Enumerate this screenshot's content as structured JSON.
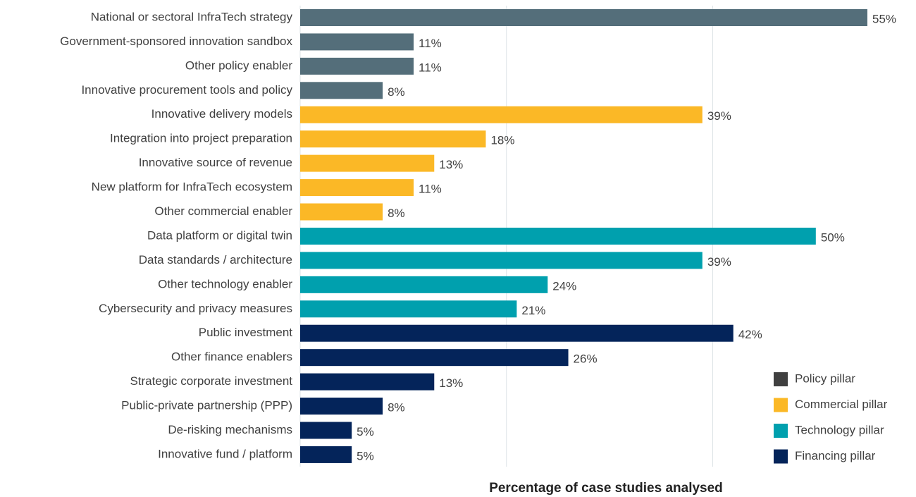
{
  "chart_data": {
    "type": "barh",
    "xlabel": "Percentage of case studies analysed",
    "categories": [
      "National or sectoral InfraTech strategy",
      "Government-sponsored innovation sandbox",
      "Other policy enabler",
      "Innovative procurement tools and policy",
      "Innovative delivery models",
      "Integration into project preparation",
      "Innovative source of revenue",
      "New platform for InfraTech ecosystem",
      "Other commercial enabler",
      "Data platform or digital twin",
      "Data standards / architecture",
      "Other technology enabler",
      "Cybersecurity and privacy measures",
      "Public investment",
      "Other finance enablers",
      "Strategic corporate investment",
      "Public-private partnership (PPP)",
      "De-risking mechanisms",
      "Innovative fund / platform"
    ],
    "series": [
      {
        "name": "Policy pillar",
        "color": "#546e7a",
        "legend_color": "#404040",
        "values": [
          55,
          11,
          11,
          8,
          null,
          null,
          null,
          null,
          null,
          null,
          null,
          null,
          null,
          null,
          null,
          null,
          null,
          null,
          null
        ],
        "value_labels": [
          "55%",
          "11%",
          "11%",
          "8%",
          null,
          null,
          null,
          null,
          null,
          null,
          null,
          null,
          null,
          null,
          null,
          null,
          null,
          null,
          null
        ]
      },
      {
        "name": "Commercial pillar",
        "color": "#fbb826",
        "values": [
          null,
          null,
          null,
          null,
          39,
          18,
          13,
          11,
          8,
          null,
          null,
          null,
          null,
          null,
          null,
          null,
          null,
          null,
          null
        ],
        "value_labels": [
          null,
          null,
          null,
          null,
          "39%",
          "18%",
          "13%",
          "11%",
          "8%",
          null,
          null,
          null,
          null,
          null,
          null,
          null,
          null,
          null,
          null
        ]
      },
      {
        "name": "Technology pillar",
        "color": "#00a0ae",
        "values": [
          null,
          null,
          null,
          null,
          null,
          null,
          null,
          null,
          null,
          50,
          39,
          24,
          21,
          null,
          null,
          null,
          null,
          null,
          null
        ],
        "value_labels": [
          null,
          null,
          null,
          null,
          null,
          null,
          null,
          null,
          null,
          "50%",
          "39%",
          "24%",
          "21%",
          null,
          null,
          null,
          null,
          null,
          null
        ]
      },
      {
        "name": "Financing pillar",
        "color": "#04245a",
        "values": [
          null,
          null,
          null,
          null,
          null,
          null,
          null,
          null,
          null,
          null,
          null,
          null,
          null,
          42,
          26,
          13,
          8,
          5,
          5
        ],
        "value_labels": [
          null,
          null,
          null,
          null,
          null,
          null,
          null,
          null,
          null,
          null,
          null,
          null,
          null,
          "42%",
          "26%",
          "13%",
          "8%",
          "5%",
          "5%"
        ]
      }
    ],
    "xlim": [
      0,
      55
    ],
    "xticks": [
      0,
      20,
      40
    ],
    "grid": true,
    "legend": "lower right"
  }
}
